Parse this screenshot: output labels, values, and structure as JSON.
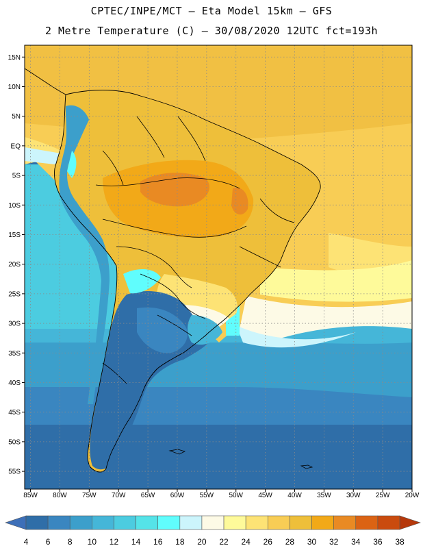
{
  "header": {
    "line1": "CPTEC/INPE/MCT –  Eta Model 15km – GFS",
    "line2": "2 Metre Temperature (C) – 30/08/2020 12UTC fct=193h"
  },
  "map": {
    "projection": "lat-lon",
    "lon_range": [
      -86,
      -20
    ],
    "lat_range": [
      -58,
      17
    ],
    "y_ticks": [
      "15N",
      "10N",
      "5N",
      "EQ",
      "5S",
      "10S",
      "15S",
      "20S",
      "25S",
      "30S",
      "35S",
      "40S",
      "45S",
      "50S",
      "55S"
    ],
    "x_ticks": [
      "85W",
      "80W",
      "75W",
      "70W",
      "65W",
      "60W",
      "55W",
      "50W",
      "45W",
      "40W",
      "35W",
      "30W",
      "25W",
      "20W"
    ]
  },
  "legend": {
    "labels": [
      "4",
      "6",
      "8",
      "10",
      "12",
      "14",
      "16",
      "18",
      "20",
      "22",
      "24",
      "26",
      "28",
      "30",
      "32",
      "34",
      "36",
      "38"
    ],
    "colors": [
      "#3d6fb8",
      "#2f6ea8",
      "#3a86c0",
      "#3c9fcb",
      "#45b6d8",
      "#4ccce0",
      "#55e3e8",
      "#60fdfd",
      "#ccf5fc",
      "#fdfae6",
      "#fefa9a",
      "#fde375",
      "#f8cd55",
      "#eebf3a",
      "#f2a918",
      "#e98a23",
      "#db6314",
      "#ca4b0e",
      "#b5380b"
    ]
  }
}
